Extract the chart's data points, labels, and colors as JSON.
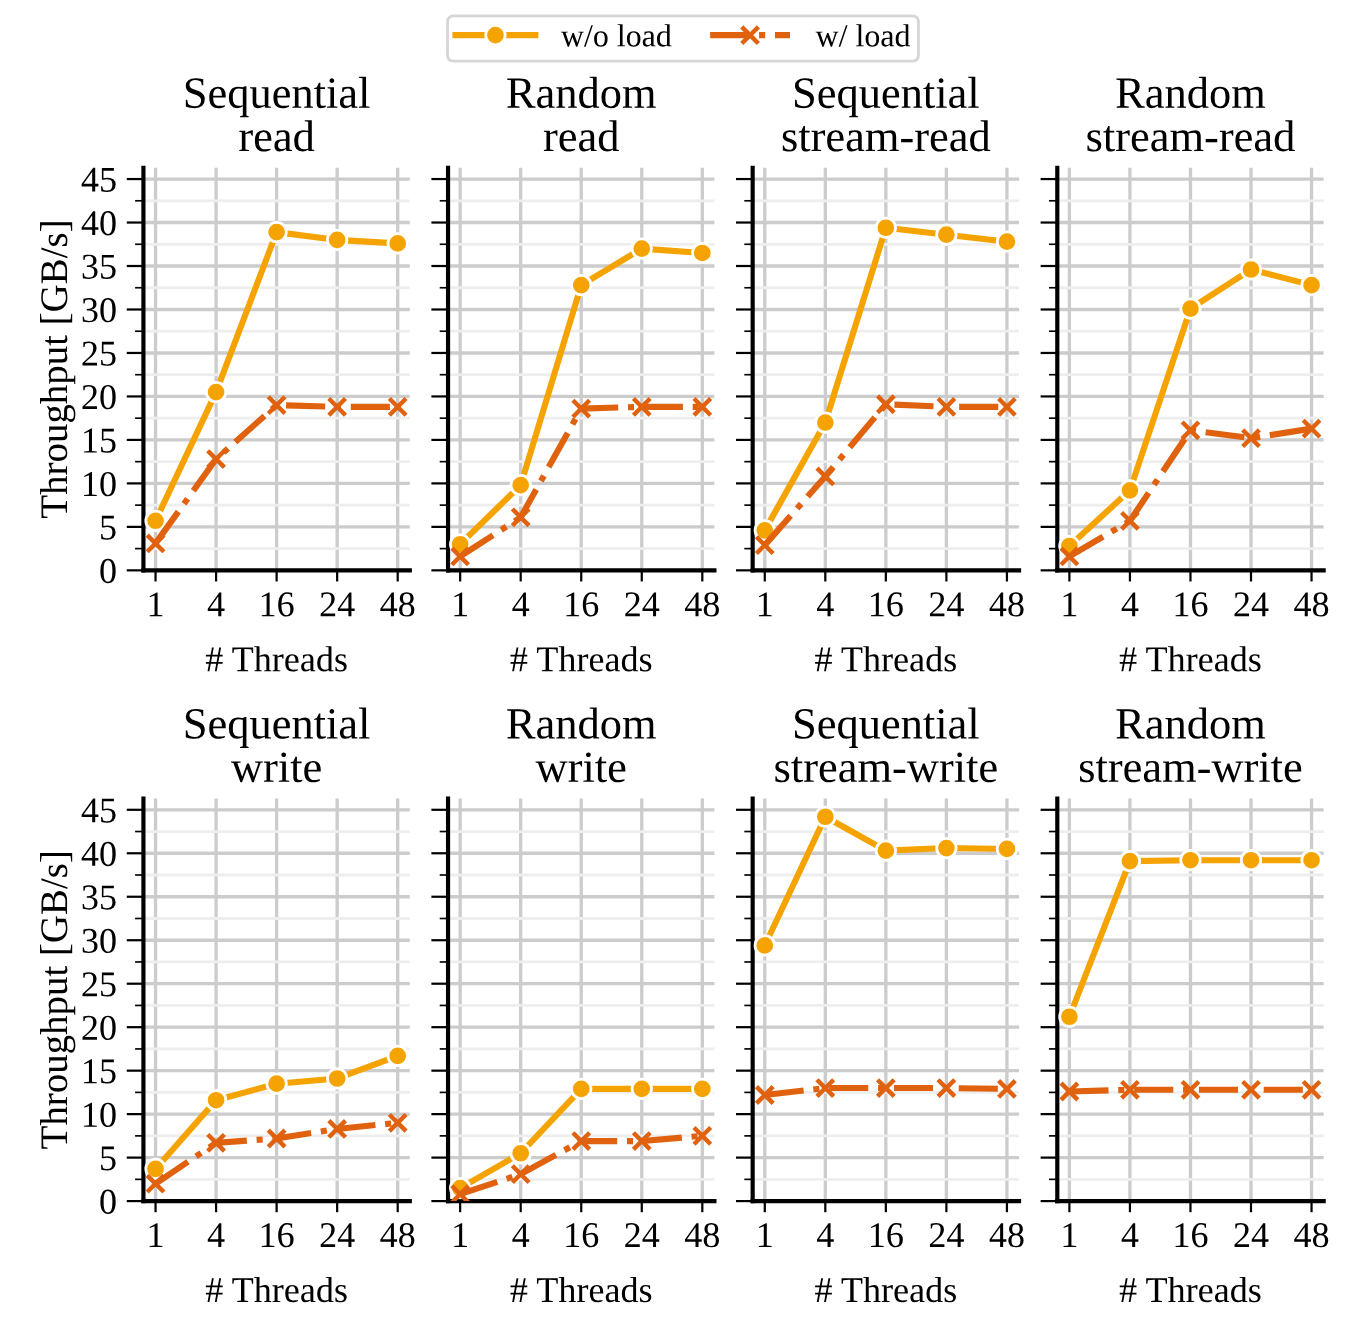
{
  "chart_data": [
    {
      "type": "line",
      "title": "Sequential\nread",
      "xlabel": "# Threads",
      "ylabel": "Throughput [GB/s]",
      "categories": [
        "1",
        "4",
        "16",
        "24",
        "48"
      ],
      "ylim": [
        0,
        46.3
      ],
      "yticks": [
        0,
        {
          "value": 2.5,
          "label": null
        },
        5,
        {
          "value": 7.5,
          "label": null
        },
        10,
        {
          "value": 12.5,
          "label": null
        },
        15,
        {
          "value": 17.5,
          "label": null
        },
        20,
        {
          "value": 22.5,
          "label": null
        },
        25,
        {
          "value": 27.5,
          "label": null
        },
        30,
        {
          "value": 32.5,
          "label": null
        },
        35,
        {
          "value": 37.5,
          "label": null
        },
        40,
        {
          "value": 42.5,
          "label": null
        },
        45
      ],
      "grid": true,
      "legend": "top",
      "series": [
        {
          "name": "w/o load",
          "color": "#f5a300",
          "marker": "circle",
          "line_style": "solid",
          "values": [
            5.7,
            20.5,
            38.9,
            38.0,
            37.6
          ]
        },
        {
          "name": "w/ load",
          "color": "#e0620f",
          "marker": "cross",
          "line_style": "dashdot",
          "values": [
            3.1,
            12.8,
            19.0,
            18.8,
            18.8
          ]
        }
      ]
    },
    {
      "type": "line",
      "title": "Random\nread",
      "xlabel": "# Threads",
      "categories": [
        "1",
        "4",
        "16",
        "24",
        "48"
      ],
      "ylim": [
        0,
        46.3
      ],
      "yticks": [
        0,
        {
          "value": 2.5,
          "label": null
        },
        5,
        {
          "value": 7.5,
          "label": null
        },
        10,
        {
          "value": 12.5,
          "label": null
        },
        15,
        {
          "value": 17.5,
          "label": null
        },
        20,
        {
          "value": 22.5,
          "label": null
        },
        25,
        {
          "value": 27.5,
          "label": null
        },
        30,
        {
          "value": 32.5,
          "label": null
        },
        35,
        {
          "value": 37.5,
          "label": null
        },
        40,
        {
          "value": 42.5,
          "label": null
        },
        45
      ],
      "grid": true,
      "tick_labels": "x",
      "series": [
        {
          "color": "#f5a300",
          "marker": "circle",
          "line_style": "solid",
          "values": [
            3.0,
            9.8,
            32.8,
            37.0,
            36.5
          ]
        },
        {
          "color": "#e0620f",
          "marker": "cross",
          "line_style": "dashdot",
          "values": [
            1.6,
            6.1,
            18.6,
            18.8,
            18.8
          ]
        }
      ]
    },
    {
      "type": "line",
      "title": "Sequential\nstream-read",
      "xlabel": "# Threads",
      "categories": [
        "1",
        "4",
        "16",
        "24",
        "48"
      ],
      "ylim": [
        0,
        46.3
      ],
      "yticks": [
        0,
        {
          "value": 2.5,
          "label": null
        },
        5,
        {
          "value": 7.5,
          "label": null
        },
        10,
        {
          "value": 12.5,
          "label": null
        },
        15,
        {
          "value": 17.5,
          "label": null
        },
        20,
        {
          "value": 22.5,
          "label": null
        },
        25,
        {
          "value": 27.5,
          "label": null
        },
        30,
        {
          "value": 32.5,
          "label": null
        },
        35,
        {
          "value": 37.5,
          "label": null
        },
        40,
        {
          "value": 42.5,
          "label": null
        },
        45
      ],
      "grid": true,
      "tick_labels": "x",
      "series": [
        {
          "color": "#f5a300",
          "marker": "circle",
          "line_style": "solid",
          "values": [
            4.6,
            17.0,
            39.4,
            38.6,
            37.8
          ]
        },
        {
          "color": "#e0620f",
          "marker": "cross",
          "line_style": "dashdot",
          "values": [
            2.9,
            10.8,
            19.1,
            18.8,
            18.8
          ]
        }
      ]
    },
    {
      "type": "line",
      "title": "Random\nstream-read",
      "xlabel": "# Threads",
      "categories": [
        "1",
        "4",
        "16",
        "24",
        "48"
      ],
      "ylim": [
        0,
        46.3
      ],
      "yticks": [
        0,
        {
          "value": 2.5,
          "label": null
        },
        5,
        {
          "value": 7.5,
          "label": null
        },
        10,
        {
          "value": 12.5,
          "label": null
        },
        15,
        {
          "value": 17.5,
          "label": null
        },
        20,
        {
          "value": 22.5,
          "label": null
        },
        25,
        {
          "value": 27.5,
          "label": null
        },
        30,
        {
          "value": 32.5,
          "label": null
        },
        35,
        {
          "value": 37.5,
          "label": null
        },
        40,
        {
          "value": 42.5,
          "label": null
        },
        45
      ],
      "grid": true,
      "tick_labels": "x",
      "series": [
        {
          "color": "#f5a300",
          "marker": "circle",
          "line_style": "solid",
          "values": [
            2.8,
            9.2,
            30.1,
            34.6,
            32.8
          ]
        },
        {
          "color": "#e0620f",
          "marker": "cross",
          "line_style": "dashdot",
          "values": [
            1.6,
            5.7,
            16.1,
            15.2,
            16.3
          ]
        }
      ]
    },
    {
      "type": "line",
      "title": "Sequential\nwrite",
      "xlabel": "# Threads",
      "ylabel": "Throughput [GB/s]",
      "categories": [
        "1",
        "4",
        "16",
        "24",
        "48"
      ],
      "ylim": [
        0,
        46.3
      ],
      "yticks": [
        0,
        {
          "value": 2.5,
          "label": null
        },
        5,
        {
          "value": 7.5,
          "label": null
        },
        10,
        {
          "value": 12.5,
          "label": null
        },
        15,
        {
          "value": 17.5,
          "label": null
        },
        20,
        {
          "value": 22.5,
          "label": null
        },
        25,
        {
          "value": 27.5,
          "label": null
        },
        30,
        {
          "value": 32.5,
          "label": null
        },
        35,
        {
          "value": 37.5,
          "label": null
        },
        40,
        {
          "value": 42.5,
          "label": null
        },
        45
      ],
      "grid": true,
      "series": [
        {
          "color": "#f5a300",
          "marker": "circle",
          "line_style": "solid",
          "values": [
            3.7,
            11.6,
            13.5,
            14.1,
            16.7
          ]
        },
        {
          "color": "#e0620f",
          "marker": "cross",
          "line_style": "dashdot",
          "values": [
            2.0,
            6.7,
            7.2,
            8.3,
            9.0
          ]
        }
      ]
    },
    {
      "type": "line",
      "title": "Random\nwrite",
      "xlabel": "# Threads",
      "categories": [
        "1",
        "4",
        "16",
        "24",
        "48"
      ],
      "ylim": [
        0,
        46.3
      ],
      "yticks": [
        0,
        {
          "value": 2.5,
          "label": null
        },
        5,
        {
          "value": 7.5,
          "label": null
        },
        10,
        {
          "value": 12.5,
          "label": null
        },
        15,
        {
          "value": 17.5,
          "label": null
        },
        20,
        {
          "value": 22.5,
          "label": null
        },
        25,
        {
          "value": 27.5,
          "label": null
        },
        30,
        {
          "value": 32.5,
          "label": null
        },
        35,
        {
          "value": 37.5,
          "label": null
        },
        40,
        {
          "value": 42.5,
          "label": null
        },
        45
      ],
      "grid": true,
      "tick_labels": "x",
      "series": [
        {
          "color": "#f5a300",
          "marker": "circle",
          "line_style": "solid",
          "values": [
            1.5,
            5.5,
            12.9,
            12.9,
            12.9
          ]
        },
        {
          "color": "#e0620f",
          "marker": "cross",
          "line_style": "dashdot",
          "values": [
            0.8,
            3.1,
            6.9,
            6.9,
            7.5
          ]
        }
      ]
    },
    {
      "type": "line",
      "title": "Sequential\nstream-write",
      "xlabel": "# Threads",
      "categories": [
        "1",
        "4",
        "16",
        "24",
        "48"
      ],
      "ylim": [
        0,
        46.3
      ],
      "yticks": [
        0,
        {
          "value": 2.5,
          "label": null
        },
        5,
        {
          "value": 7.5,
          "label": null
        },
        10,
        {
          "value": 12.5,
          "label": null
        },
        15,
        {
          "value": 17.5,
          "label": null
        },
        20,
        {
          "value": 22.5,
          "label": null
        },
        25,
        {
          "value": 27.5,
          "label": null
        },
        30,
        {
          "value": 32.5,
          "label": null
        },
        35,
        {
          "value": 37.5,
          "label": null
        },
        40,
        {
          "value": 42.5,
          "label": null
        },
        45
      ],
      "grid": true,
      "tick_labels": "x",
      "series": [
        {
          "color": "#f5a300",
          "marker": "circle",
          "line_style": "solid",
          "values": [
            29.4,
            44.2,
            40.3,
            40.6,
            40.5
          ]
        },
        {
          "color": "#e0620f",
          "marker": "cross",
          "line_style": "dashdot",
          "values": [
            12.2,
            13.0,
            13.0,
            13.0,
            12.9
          ]
        }
      ]
    },
    {
      "type": "line",
      "title": "Random\nstream-write",
      "xlabel": "# Threads",
      "categories": [
        "1",
        "4",
        "16",
        "24",
        "48"
      ],
      "ylim": [
        0,
        46.3
      ],
      "yticks": [
        0,
        {
          "value": 2.5,
          "label": null
        },
        5,
        {
          "value": 7.5,
          "label": null
        },
        10,
        {
          "value": 12.5,
          "label": null
        },
        15,
        {
          "value": 17.5,
          "label": null
        },
        20,
        {
          "value": 22.5,
          "label": null
        },
        25,
        {
          "value": 27.5,
          "label": null
        },
        30,
        {
          "value": 32.5,
          "label": null
        },
        35,
        {
          "value": 37.5,
          "label": null
        },
        40,
        {
          "value": 42.5,
          "label": null
        },
        45
      ],
      "grid": true,
      "tick_labels": "x",
      "series": [
        {
          "color": "#f5a300",
          "marker": "circle",
          "line_style": "solid",
          "values": [
            21.2,
            39.1,
            39.2,
            39.2,
            39.2
          ]
        },
        {
          "color": "#e0620f",
          "marker": "cross",
          "line_style": "dashdot",
          "values": [
            12.6,
            12.8,
            12.8,
            12.8,
            12.8
          ]
        }
      ]
    }
  ]
}
